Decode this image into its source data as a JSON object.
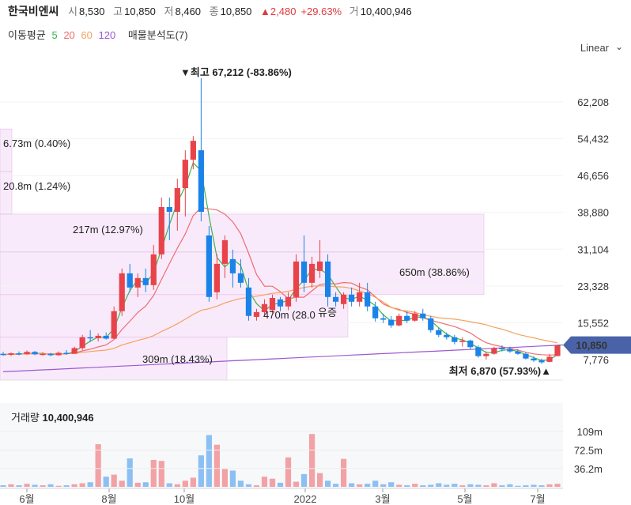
{
  "header": {
    "name": "한국비엔씨",
    "open_label": "시",
    "open": "8,530",
    "high_label": "고",
    "high": "10,850",
    "low_label": "저",
    "low": "8,460",
    "close_label": "종",
    "close": "10,850",
    "change": "▲2,480",
    "change_pct": "+29.63%",
    "volume_label": "거",
    "volume": "10,400,946"
  },
  "indicators": {
    "ma_label": "이동평균",
    "ma5": "5",
    "ma20": "20",
    "ma60": "60",
    "ma120": "120",
    "vp_label": "매물분석도(7)"
  },
  "scale_toggle": "Linear",
  "colors": {
    "up": "#e8434a",
    "down": "#1a83e8",
    "ma5": "#3cb44b",
    "ma20": "#f06b70",
    "ma60": "#f5a25d",
    "ma120": "#9b59d0",
    "vp_fill": "#f3d9f5",
    "price_tag": "#4a63a8"
  },
  "chart_data": {
    "type": "candlestick",
    "y_ticks": [
      "62,208",
      "54,432",
      "46,656",
      "38,880",
      "31,104",
      "23,328",
      "15,552",
      "7,776"
    ],
    "x_ticks": [
      "6월",
      "8월",
      "10월",
      "2022",
      "3월",
      "5월",
      "7월"
    ],
    "last_price_tag": "10,850",
    "max_label": "▼최고 67,212 (-83.86%)",
    "min_label": "최저 6,870 (57.93%)▲",
    "volume_profile": [
      {
        "label": "6.73m (0.40%)",
        "low": 47500,
        "high": 56500
      },
      {
        "label": "20.8m (1.24%)",
        "low": 38500,
        "high": 47500
      },
      {
        "label": "217m (12.97%)",
        "low": 30500,
        "high": 38500
      },
      {
        "label": "650m (38.86%)",
        "low": 21500,
        "high": 30500
      },
      {
        "label": "470m (28.0",
        "low": 12500,
        "high": 21500
      },
      {
        "label": "309m (18.43%)",
        "low": 3500,
        "high": 12500
      }
    ],
    "annotation": "유증",
    "volume_title": "거래량",
    "volume_value": "10,400,946",
    "volume_ticks": [
      "109m",
      "72.5m",
      "36.2m"
    ],
    "candles": [
      {
        "o": 9000,
        "h": 9400,
        "l": 8600,
        "c": 8800
      },
      {
        "o": 8800,
        "h": 9300,
        "l": 8500,
        "c": 9100
      },
      {
        "o": 9100,
        "h": 9500,
        "l": 8700,
        "c": 8900
      },
      {
        "o": 8900,
        "h": 9700,
        "l": 8800,
        "c": 9400
      },
      {
        "o": 9400,
        "h": 9600,
        "l": 8700,
        "c": 8900
      },
      {
        "o": 8900,
        "h": 9300,
        "l": 8600,
        "c": 9000
      },
      {
        "o": 9000,
        "h": 9200,
        "l": 8500,
        "c": 8700
      },
      {
        "o": 8700,
        "h": 9500,
        "l": 8600,
        "c": 9200
      },
      {
        "o": 9200,
        "h": 9800,
        "l": 8800,
        "c": 9000
      },
      {
        "o": 9000,
        "h": 10500,
        "l": 9000,
        "c": 10200
      },
      {
        "o": 10200,
        "h": 13000,
        "l": 9800,
        "c": 12500
      },
      {
        "o": 12500,
        "h": 14000,
        "l": 11500,
        "c": 12300
      },
      {
        "o": 12300,
        "h": 13300,
        "l": 11600,
        "c": 12800
      },
      {
        "o": 12800,
        "h": 13500,
        "l": 12000,
        "c": 12200
      },
      {
        "o": 12200,
        "h": 19000,
        "l": 12100,
        "c": 18000
      },
      {
        "o": 18000,
        "h": 27000,
        "l": 17000,
        "c": 26000
      },
      {
        "o": 26000,
        "h": 28000,
        "l": 22000,
        "c": 23000
      },
      {
        "o": 23000,
        "h": 26000,
        "l": 21000,
        "c": 25000
      },
      {
        "o": 25000,
        "h": 27000,
        "l": 22000,
        "c": 23500
      },
      {
        "o": 23500,
        "h": 32000,
        "l": 22500,
        "c": 30000
      },
      {
        "o": 30000,
        "h": 42000,
        "l": 29000,
        "c": 40000
      },
      {
        "o": 40000,
        "h": 42000,
        "l": 33000,
        "c": 39000
      },
      {
        "o": 39000,
        "h": 46000,
        "l": 35000,
        "c": 44000
      },
      {
        "o": 44000,
        "h": 52000,
        "l": 38000,
        "c": 50000
      },
      {
        "o": 50000,
        "h": 55000,
        "l": 48000,
        "c": 54000
      },
      {
        "o": 52000,
        "h": 67212,
        "l": 37000,
        "c": 39000
      },
      {
        "o": 34000,
        "h": 36000,
        "l": 20000,
        "c": 21000
      },
      {
        "o": 22000,
        "h": 30000,
        "l": 20500,
        "c": 28000
      },
      {
        "o": 28000,
        "h": 34000,
        "l": 25000,
        "c": 33000
      },
      {
        "o": 29000,
        "h": 31000,
        "l": 23000,
        "c": 26000
      },
      {
        "o": 26000,
        "h": 29000,
        "l": 23000,
        "c": 24000
      },
      {
        "o": 23000,
        "h": 25000,
        "l": 16000,
        "c": 17000
      },
      {
        "o": 16800,
        "h": 18500,
        "l": 16000,
        "c": 17800
      },
      {
        "o": 17800,
        "h": 20500,
        "l": 17000,
        "c": 19500
      },
      {
        "o": 18200,
        "h": 21500,
        "l": 17500,
        "c": 20800
      },
      {
        "o": 20500,
        "h": 21000,
        "l": 18000,
        "c": 19000
      },
      {
        "o": 19000,
        "h": 22000,
        "l": 18200,
        "c": 21000
      },
      {
        "o": 21000,
        "h": 30000,
        "l": 20000,
        "c": 28500
      },
      {
        "o": 28500,
        "h": 34000,
        "l": 22000,
        "c": 24000
      },
      {
        "o": 24000,
        "h": 29500,
        "l": 23000,
        "c": 28000
      },
      {
        "o": 26500,
        "h": 33000,
        "l": 25000,
        "c": 28500
      },
      {
        "o": 28500,
        "h": 30000,
        "l": 19000,
        "c": 21000
      },
      {
        "o": 21000,
        "h": 22000,
        "l": 19000,
        "c": 20000
      },
      {
        "o": 19500,
        "h": 22000,
        "l": 18500,
        "c": 21500
      },
      {
        "o": 21500,
        "h": 23000,
        "l": 19000,
        "c": 20000
      },
      {
        "o": 20000,
        "h": 24000,
        "l": 19000,
        "c": 22000
      },
      {
        "o": 22000,
        "h": 24000,
        "l": 18000,
        "c": 19000
      },
      {
        "o": 19000,
        "h": 20000,
        "l": 15800,
        "c": 16500
      },
      {
        "o": 16500,
        "h": 17500,
        "l": 15500,
        "c": 16200
      },
      {
        "o": 16200,
        "h": 17000,
        "l": 14500,
        "c": 15000
      },
      {
        "o": 15000,
        "h": 17500,
        "l": 14800,
        "c": 17000
      },
      {
        "o": 17000,
        "h": 18000,
        "l": 15500,
        "c": 16000
      },
      {
        "o": 16000,
        "h": 18000,
        "l": 15800,
        "c": 17500
      },
      {
        "o": 17500,
        "h": 18500,
        "l": 16000,
        "c": 16500
      },
      {
        "o": 16500,
        "h": 17000,
        "l": 13500,
        "c": 14000
      },
      {
        "o": 14000,
        "h": 14500,
        "l": 12500,
        "c": 13000
      },
      {
        "o": 13000,
        "h": 13500,
        "l": 12000,
        "c": 12500
      },
      {
        "o": 12500,
        "h": 13000,
        "l": 11000,
        "c": 11500
      },
      {
        "o": 11500,
        "h": 12500,
        "l": 10500,
        "c": 11800
      },
      {
        "o": 11800,
        "h": 12000,
        "l": 10000,
        "c": 10400
      },
      {
        "o": 10400,
        "h": 10800,
        "l": 8200,
        "c": 8500
      },
      {
        "o": 8500,
        "h": 9500,
        "l": 7800,
        "c": 9000
      },
      {
        "o": 9000,
        "h": 10500,
        "l": 8800,
        "c": 10200
      },
      {
        "o": 10200,
        "h": 10800,
        "l": 9500,
        "c": 10000
      },
      {
        "o": 10000,
        "h": 10500,
        "l": 9200,
        "c": 9500
      },
      {
        "o": 9500,
        "h": 10000,
        "l": 8800,
        "c": 9000
      },
      {
        "o": 9000,
        "h": 9300,
        "l": 7800,
        "c": 8000
      },
      {
        "o": 8000,
        "h": 8500,
        "l": 7300,
        "c": 7600
      },
      {
        "o": 7600,
        "h": 8000,
        "l": 6870,
        "c": 7200
      },
      {
        "o": 7300,
        "h": 9000,
        "l": 7200,
        "c": 8370
      },
      {
        "o": 8530,
        "h": 10850,
        "l": 8460,
        "c": 10850
      }
    ],
    "volumes": [
      3,
      5,
      3,
      6,
      4,
      3,
      5,
      2,
      3,
      5,
      7,
      9,
      84,
      20,
      24,
      12,
      56,
      8,
      9,
      53,
      51,
      7,
      5,
      12,
      18,
      62,
      102,
      83,
      35,
      32,
      12,
      5,
      3,
      20,
      16,
      8,
      58,
      10,
      25,
      104,
      27,
      12,
      6,
      55,
      7,
      5,
      6,
      12,
      5,
      9,
      4,
      3,
      6,
      3,
      4,
      7,
      4,
      6,
      3,
      5,
      4,
      3,
      7,
      3,
      5,
      2,
      3,
      4,
      3,
      5,
      6
    ]
  }
}
